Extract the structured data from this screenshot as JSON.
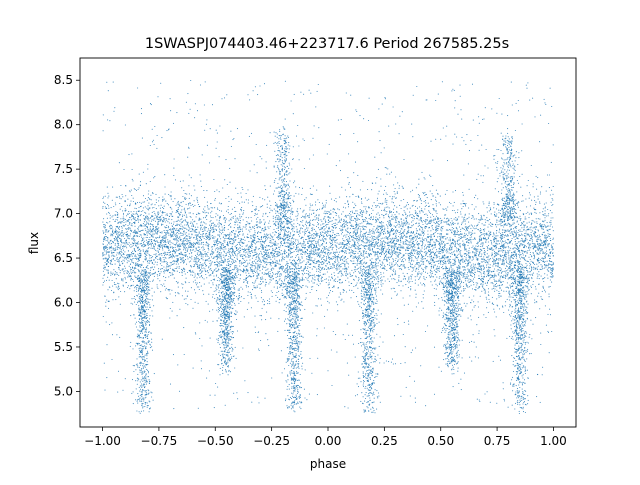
{
  "chart_data": {
    "type": "scatter",
    "title": "1SWASPJ074403.46+223717.6 Period 267585.25s",
    "xlabel": "phase",
    "ylabel": "flux",
    "xlim": [
      -1.1,
      1.1
    ],
    "ylim": [
      4.6,
      8.75
    ],
    "x_ticks": [
      -1.0,
      -0.75,
      -0.5,
      -0.25,
      0.0,
      0.25,
      0.5,
      0.75,
      1.0
    ],
    "x_tick_labels": [
      "−1.00",
      "−0.75",
      "−0.50",
      "−0.25",
      "0.00",
      "0.25",
      "0.50",
      "0.75",
      "1.00"
    ],
    "y_ticks": [
      5.0,
      5.5,
      6.0,
      6.5,
      7.0,
      7.5,
      8.0,
      8.5
    ],
    "y_tick_labels": [
      "5.0",
      "5.5",
      "6.0",
      "6.5",
      "7.0",
      "7.5",
      "8.0",
      "8.5"
    ],
    "grid": false,
    "point_color": "#1f77b4",
    "series": [
      {
        "baseline_flux": 6.62,
        "band_spread": 0.27,
        "phase_range": [
          -1.0,
          1.0
        ],
        "dips": [
          {
            "phase": -0.82,
            "min_flux": 4.75
          },
          {
            "phase": -0.45,
            "min_flux": 5.3
          },
          {
            "phase": -0.15,
            "min_flux": 4.8
          },
          {
            "phase": 0.18,
            "min_flux": 4.75
          },
          {
            "phase": 0.55,
            "min_flux": 5.3
          },
          {
            "phase": 0.85,
            "min_flux": 4.8
          }
        ],
        "flares": [
          {
            "phase": -0.2,
            "max_flux": 7.9
          },
          {
            "phase": 0.8,
            "max_flux": 7.9
          }
        ]
      }
    ]
  }
}
